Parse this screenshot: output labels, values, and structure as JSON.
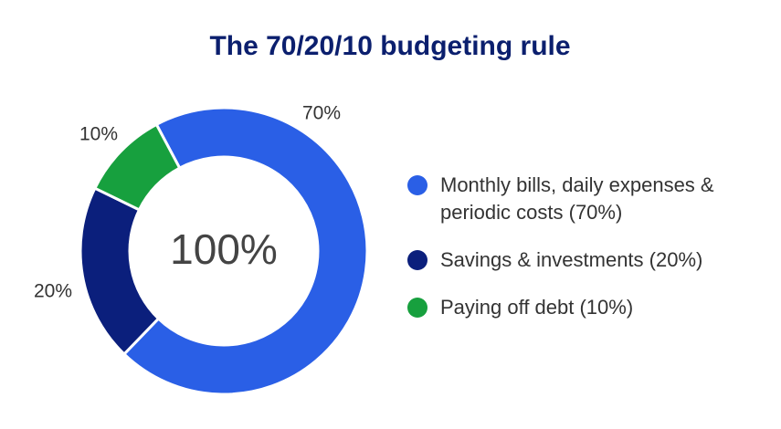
{
  "chart_data": {
    "type": "donut",
    "title": "The 70/20/10 budgeting rule",
    "center_label": "100%",
    "categories": [
      "Monthly bills, daily expenses & periodic costs (70%)",
      "Savings & investments (20%)",
      "Paying off debt (10%)"
    ],
    "values": [
      70,
      20,
      10
    ],
    "value_labels": [
      "70%",
      "20%",
      "10%"
    ],
    "colors": [
      "#2a5fe6",
      "#0b1f7c",
      "#17a03e"
    ]
  }
}
